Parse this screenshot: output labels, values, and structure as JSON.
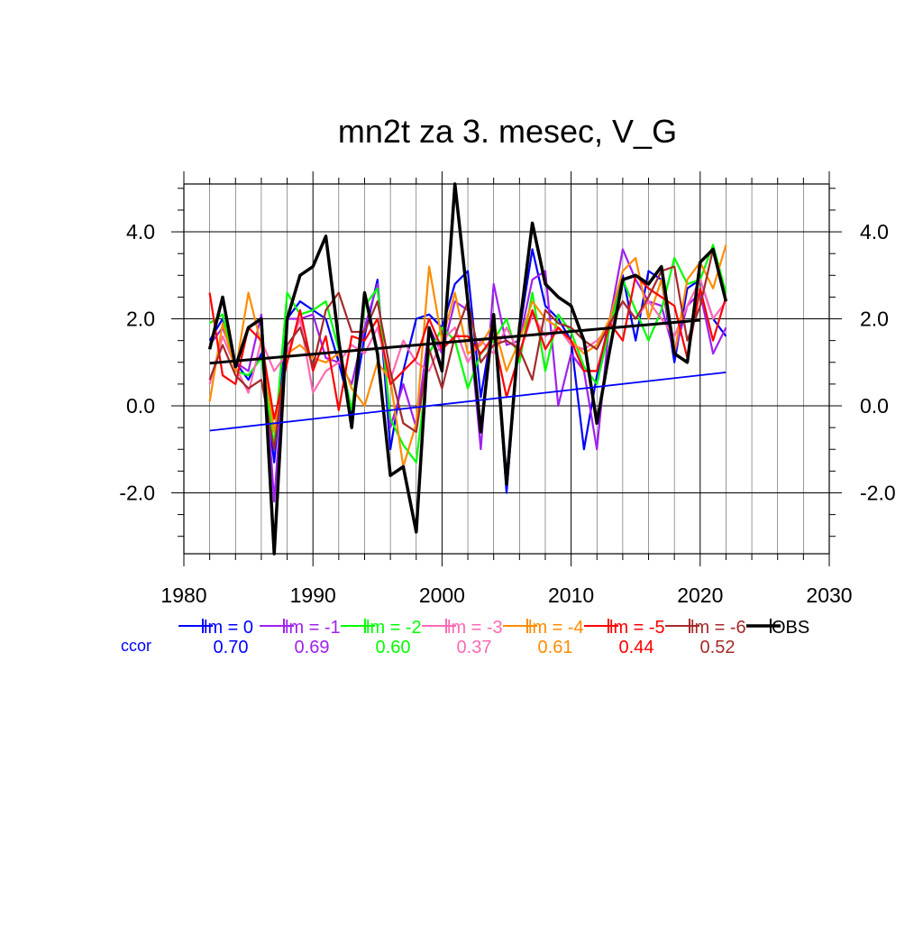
{
  "chart_data": {
    "type": "line",
    "title": "mn2t za 3. mesec, V_G",
    "xlim": [
      1980,
      2030
    ],
    "ylim": [
      -3.4,
      5.1
    ],
    "x_ticks": [
      1980,
      1990,
      2000,
      2010,
      2020,
      2030
    ],
    "x_tick_labels": [
      "1980",
      "1990",
      "2000",
      "2010",
      "2020",
      "2030"
    ],
    "y_ticks": [
      -2.0,
      0.0,
      2.0,
      4.0
    ],
    "y_tick_labels": [
      "-2.0",
      "0.0",
      "2.0",
      "4.0"
    ],
    "grid": true,
    "legend_placement": "bottom",
    "ccor_label": "ccor",
    "series": [
      {
        "name": "lm = 0",
        "color": "#0000ff",
        "ccor": "0.70",
        "x": [
          1982,
          1983,
          1984,
          1985,
          1986,
          1987,
          1988,
          1989,
          1990,
          1991,
          1992,
          1993,
          1994,
          1995,
          1996,
          1997,
          1998,
          1999,
          2000,
          2001,
          2002,
          2003,
          2004,
          2005,
          2006,
          2007,
          2008,
          2009,
          2010,
          2011,
          2012,
          2013,
          2014,
          2015,
          2016,
          2017,
          2018,
          2019,
          2020,
          2021,
          2022
        ],
        "y": [
          1.5,
          2.0,
          1.0,
          0.6,
          1.2,
          -1.3,
          2.0,
          2.4,
          2.2,
          2.0,
          1.0,
          -0.2,
          1.6,
          2.9,
          -1.0,
          0.8,
          2.0,
          2.1,
          1.8,
          2.8,
          3.1,
          0.2,
          2.0,
          -2.0,
          1.7,
          3.6,
          2.3,
          2.0,
          1.5,
          -1.0,
          0.7,
          2.0,
          3.0,
          1.5,
          3.1,
          2.9,
          1.0,
          2.7,
          2.9,
          2.0,
          1.6
        ],
        "trend": [
          -0.57,
          0.77
        ]
      },
      {
        "name": "lm = -1",
        "color": "#a020f0",
        "ccor": "0.69",
        "x": [
          1982,
          1983,
          1984,
          1985,
          1986,
          1987,
          1988,
          1989,
          1990,
          1991,
          1992,
          1993,
          1994,
          1995,
          1996,
          1997,
          1998,
          1999,
          2000,
          2001,
          2002,
          2003,
          2004,
          2005,
          2006,
          2007,
          2008,
          2009,
          2010,
          2011,
          2012,
          2013,
          2014,
          2015,
          2016,
          2017,
          2018,
          2019,
          2020,
          2021,
          2022
        ],
        "y": [
          1.4,
          1.8,
          1.0,
          0.8,
          2.1,
          -2.2,
          2.0,
          2.0,
          2.1,
          1.1,
          1.0,
          0.5,
          1.8,
          2.8,
          -0.5,
          0.5,
          -0.5,
          1.8,
          1.2,
          2.4,
          2.2,
          -1.0,
          2.8,
          1.4,
          1.5,
          2.9,
          3.1,
          0.0,
          1.2,
          0.8,
          -1.0,
          2.0,
          3.6,
          2.9,
          2.4,
          2.3,
          1.2,
          2.3,
          2.6,
          1.2,
          1.8
        ]
      },
      {
        "name": "lm = -2",
        "color": "#00ff00",
        "ccor": "0.60",
        "x": [
          1982,
          1983,
          1984,
          1985,
          1986,
          1987,
          1988,
          1989,
          1990,
          1991,
          1992,
          1993,
          1994,
          1995,
          1996,
          1997,
          1998,
          1999,
          2000,
          2001,
          2002,
          2003,
          2004,
          2005,
          2006,
          2007,
          2008,
          2009,
          2010,
          2011,
          2012,
          2013,
          2014,
          2015,
          2016,
          2017,
          2018,
          2019,
          2020,
          2021,
          2022
        ],
        "y": [
          1.9,
          2.1,
          0.8,
          0.7,
          1.1,
          -0.9,
          2.6,
          2.1,
          2.2,
          2.4,
          1.3,
          -0.1,
          2.3,
          2.7,
          -0.3,
          -0.9,
          -1.3,
          1.2,
          1.8,
          1.5,
          0.4,
          1.2,
          1.5,
          2.0,
          1.0,
          2.6,
          0.8,
          2.1,
          1.7,
          0.9,
          0.5,
          1.8,
          2.9,
          2.2,
          1.5,
          2.2,
          3.4,
          2.8,
          2.9,
          3.7,
          2.6
        ]
      },
      {
        "name": "lm = -3",
        "color": "#ff69b4",
        "ccor": "0.37",
        "x": [
          1982,
          1983,
          1984,
          1985,
          1986,
          1987,
          1988,
          1989,
          1990,
          1991,
          1992,
          1993,
          1994,
          1995,
          1996,
          1997,
          1998,
          1999,
          2000,
          2001,
          2002,
          2003,
          2004,
          2005,
          2006,
          2007,
          2008,
          2009,
          2010,
          2011,
          2012,
          2013,
          2014,
          2015,
          2016,
          2017,
          2018,
          2019,
          2020,
          2021,
          2022
        ],
        "y": [
          0.5,
          1.6,
          0.9,
          0.3,
          1.5,
          0.8,
          1.2,
          2.0,
          0.3,
          0.8,
          1.0,
          1.4,
          1.2,
          1.8,
          0.6,
          1.5,
          1.0,
          0.8,
          1.5,
          1.8,
          1.0,
          1.5,
          1.2,
          1.8,
          1.2,
          2.1,
          1.6,
          1.8,
          1.4,
          1.3,
          1.5,
          1.8,
          2.4,
          2.0,
          2.4,
          2.0,
          1.6,
          2.3,
          2.9,
          2.0,
          2.4
        ]
      },
      {
        "name": "lm = -4",
        "color": "#ff8c00",
        "ccor": "0.61",
        "x": [
          1982,
          1983,
          1984,
          1985,
          1986,
          1987,
          1988,
          1989,
          1990,
          1991,
          1992,
          1993,
          1994,
          1995,
          1996,
          1997,
          1998,
          1999,
          2000,
          2001,
          2002,
          2003,
          2004,
          2005,
          2006,
          2007,
          2008,
          2009,
          2010,
          2011,
          2012,
          2013,
          2014,
          2015,
          2016,
          2017,
          2018,
          2019,
          2020,
          2021,
          2022
        ],
        "y": [
          0.1,
          1.9,
          0.8,
          2.6,
          1.4,
          -0.6,
          1.2,
          1.4,
          1.1,
          1.0,
          1.2,
          0.4,
          0.0,
          1.0,
          0.6,
          -1.4,
          -0.4,
          3.2,
          1.5,
          2.6,
          1.2,
          1.4,
          1.9,
          0.8,
          1.5,
          2.4,
          2.0,
          1.8,
          1.5,
          1.2,
          1.4,
          2.0,
          3.1,
          3.4,
          2.0,
          2.9,
          1.2,
          2.9,
          3.3,
          2.7,
          3.7
        ]
      },
      {
        "name": "lm = -5",
        "color": "#ff0000",
        "ccor": "0.44",
        "x": [
          1982,
          1983,
          1984,
          1985,
          1986,
          1987,
          1988,
          1989,
          1990,
          1991,
          1992,
          1993,
          1994,
          1995,
          1996,
          1997,
          1998,
          1999,
          2000,
          2001,
          2002,
          2003,
          2004,
          2005,
          2006,
          2007,
          2008,
          2009,
          2010,
          2011,
          2012,
          2013,
          2014,
          2015,
          2016,
          2017,
          2018,
          2019,
          2020,
          2021,
          2022
        ],
        "y": [
          2.6,
          0.7,
          0.5,
          1.8,
          1.5,
          -0.3,
          1.0,
          2.2,
          0.8,
          1.6,
          -0.1,
          1.6,
          1.5,
          2.0,
          0.5,
          0.8,
          1.1,
          2.0,
          1.3,
          1.6,
          1.6,
          1.2,
          1.6,
          0.2,
          1.2,
          2.2,
          1.3,
          1.8,
          1.5,
          0.8,
          0.8,
          1.9,
          1.5,
          3.0,
          2.7,
          2.5,
          2.3,
          1.1,
          2.7,
          1.5,
          2.5
        ]
      },
      {
        "name": "lm = -6",
        "color": "#a52a2a",
        "ccor": "0.52",
        "x": [
          1982,
          1983,
          1984,
          1985,
          1986,
          1987,
          1988,
          1989,
          1990,
          1991,
          1992,
          1993,
          1994,
          1995,
          1996,
          1997,
          1998,
          1999,
          2000,
          2001,
          2002,
          2003,
          2004,
          2005,
          2006,
          2007,
          2008,
          2009,
          2010,
          2011,
          2012,
          2013,
          2014,
          2015,
          2016,
          2017,
          2018,
          2019,
          2020,
          2021,
          2022
        ],
        "y": [
          0.6,
          1.4,
          0.7,
          0.4,
          0.6,
          -1.0,
          1.4,
          1.8,
          0.9,
          2.2,
          2.6,
          1.7,
          1.7,
          2.4,
          0.8,
          -0.4,
          -0.6,
          1.3,
          0.4,
          1.6,
          2.4,
          1.0,
          1.4,
          1.5,
          1.3,
          0.6,
          2.2,
          1.9,
          1.8,
          1.5,
          1.3,
          1.9,
          2.4,
          2.0,
          2.5,
          3.1,
          3.2,
          1.5,
          2.3,
          3.6,
          2.4
        ]
      },
      {
        "name": "OBS",
        "color": "#000000",
        "ccor": "",
        "x": [
          1982,
          1983,
          1984,
          1985,
          1986,
          1987,
          1988,
          1989,
          1990,
          1991,
          1992,
          1993,
          1994,
          1995,
          1996,
          1997,
          1998,
          1999,
          2000,
          2001,
          2002,
          2003,
          2004,
          2005,
          2006,
          2007,
          2008,
          2009,
          2010,
          2011,
          2012,
          2013,
          2014,
          2015,
          2016,
          2017,
          2018,
          2019,
          2020,
          2021,
          2022
        ],
        "y": [
          1.3,
          2.5,
          0.9,
          1.8,
          2.0,
          -3.4,
          2.0,
          3.0,
          3.2,
          3.9,
          1.5,
          -0.5,
          2.6,
          1.2,
          -1.6,
          -1.4,
          -2.9,
          1.8,
          0.8,
          5.1,
          2.4,
          -0.6,
          2.1,
          -1.8,
          1.8,
          4.2,
          2.8,
          2.5,
          2.3,
          1.5,
          -0.4,
          1.3,
          2.9,
          3.0,
          2.8,
          3.2,
          1.2,
          1.0,
          3.3,
          3.6,
          2.4
        ],
        "trend": [
          0.98,
          1.97
        ]
      }
    ]
  }
}
